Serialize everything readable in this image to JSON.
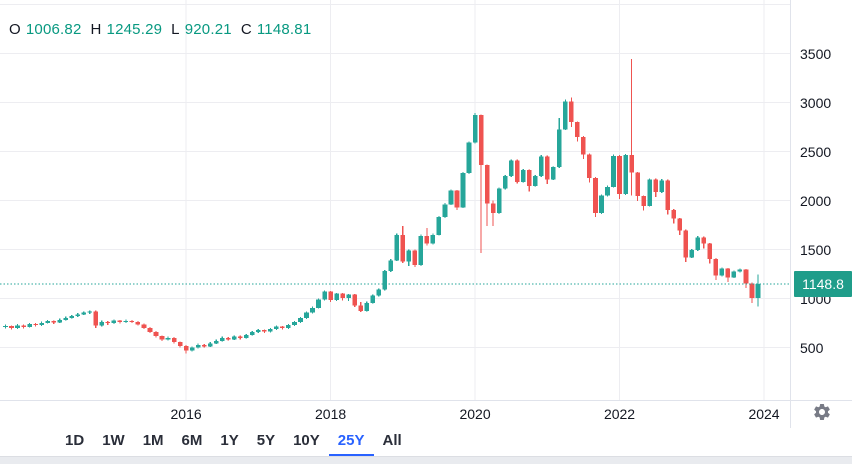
{
  "legend": {
    "o_label": "O",
    "o_value": "1006.82",
    "h_label": "H",
    "h_value": "1245.29",
    "l_label": "L",
    "l_value": "920.21",
    "c_label": "C",
    "c_value": "1148.81"
  },
  "price_axis": {
    "ticks": [
      3500,
      3000,
      2500,
      2000,
      1500,
      1000,
      500
    ],
    "current_price_label": "1148.8"
  },
  "time_axis": {
    "ticks": [
      "2016",
      "2018",
      "2020",
      "2022",
      "2024"
    ]
  },
  "toolbar": {
    "ranges": [
      {
        "label": "1D",
        "active": false
      },
      {
        "label": "1W",
        "active": false
      },
      {
        "label": "1M",
        "active": false
      },
      {
        "label": "6M",
        "active": false
      },
      {
        "label": "1Y",
        "active": false
      },
      {
        "label": "5Y",
        "active": false
      },
      {
        "label": "10Y",
        "active": false
      },
      {
        "label": "25Y",
        "active": true
      },
      {
        "label": "All",
        "active": false
      }
    ]
  },
  "icons": {
    "settings": "gear-icon"
  },
  "colors": {
    "up": "#26a69a",
    "down": "#ef5350",
    "legend_value": "#089981",
    "badge": "#1f9d8a",
    "dotted_price_line": "#26a69a",
    "accent_blue": "#2962ff",
    "grid": "#ededf1",
    "separator": "#e0e3eb",
    "text": "#131722",
    "icon_gray": "#787b86"
  },
  "chart_data": {
    "type": "candlestick",
    "interval": "1M",
    "timeframe_selected": "25Y",
    "start_month": "2013-07",
    "end_month": "2023-12",
    "last_price": 1148.81,
    "ohlc_last": {
      "open": 1006.82,
      "high": 1245.29,
      "low": 920.21,
      "close": 1148.81
    },
    "y_axis": {
      "ticks": [
        3500,
        3000,
        2500,
        2000,
        1500,
        1000,
        500
      ],
      "gridlines": [
        4000,
        3500,
        3000,
        2500,
        2000,
        1500,
        1000,
        500
      ],
      "visible_range": [
        420,
        4000
      ]
    },
    "x_axis": {
      "tick_years": [
        2016,
        2018,
        2020,
        2022,
        2024
      ]
    },
    "candles_format": [
      "open",
      "high",
      "low",
      "close"
    ],
    "candles": [
      [
        710,
        736,
        696,
        718
      ],
      [
        718,
        726,
        684,
        698
      ],
      [
        698,
        740,
        690,
        725
      ],
      [
        725,
        733,
        696,
        710
      ],
      [
        710,
        752,
        702,
        740
      ],
      [
        740,
        748,
        712,
        728
      ],
      [
        728,
        764,
        720,
        752
      ],
      [
        752,
        780,
        744,
        768
      ],
      [
        768,
        776,
        740,
        755
      ],
      [
        755,
        794,
        748,
        782
      ],
      [
        782,
        814,
        774,
        802
      ],
      [
        802,
        832,
        794,
        820
      ],
      [
        820,
        850,
        812,
        838
      ],
      [
        838,
        868,
        830,
        855
      ],
      [
        855,
        880,
        840,
        868
      ],
      [
        868,
        876,
        700,
        725
      ],
      [
        725,
        774,
        716,
        762
      ],
      [
        762,
        770,
        732,
        748
      ],
      [
        748,
        787,
        740,
        775
      ],
      [
        775,
        783,
        746,
        758
      ],
      [
        758,
        784,
        750,
        772
      ],
      [
        772,
        780,
        748,
        760
      ],
      [
        760,
        768,
        722,
        735
      ],
      [
        735,
        743,
        688,
        700
      ],
      [
        700,
        708,
        646,
        660
      ],
      [
        660,
        668,
        600,
        615
      ],
      [
        615,
        623,
        566,
        580
      ],
      [
        580,
        610,
        572,
        598
      ],
      [
        598,
        606,
        542,
        555
      ],
      [
        555,
        563,
        502,
        515
      ],
      [
        515,
        523,
        440,
        468
      ],
      [
        468,
        510,
        460,
        498
      ],
      [
        498,
        540,
        490,
        528
      ],
      [
        528,
        536,
        500,
        512
      ],
      [
        512,
        554,
        504,
        542
      ],
      [
        542,
        580,
        534,
        568
      ],
      [
        568,
        610,
        560,
        598
      ],
      [
        598,
        606,
        570,
        582
      ],
      [
        582,
        624,
        574,
        612
      ],
      [
        612,
        620,
        584,
        598
      ],
      [
        598,
        640,
        590,
        628
      ],
      [
        628,
        670,
        620,
        658
      ],
      [
        658,
        690,
        650,
        678
      ],
      [
        678,
        686,
        648,
        662
      ],
      [
        662,
        700,
        654,
        688
      ],
      [
        688,
        724,
        680,
        712
      ],
      [
        712,
        720,
        684,
        698
      ],
      [
        698,
        740,
        690,
        728
      ],
      [
        728,
        772,
        720,
        760
      ],
      [
        760,
        812,
        752,
        800
      ],
      [
        800,
        867,
        792,
        855
      ],
      [
        855,
        917,
        847,
        905
      ],
      [
        905,
        1002,
        897,
        990
      ],
      [
        990,
        1082,
        982,
        1070
      ],
      [
        1070,
        1078,
        962,
        985
      ],
      [
        985,
        1058,
        977,
        1050
      ],
      [
        1050,
        1058,
        980,
        1005
      ],
      [
        1005,
        1048,
        972,
        1040
      ],
      [
        1040,
        1048,
        912,
        930
      ],
      [
        930,
        962,
        860,
        875
      ],
      [
        875,
        968,
        867,
        955
      ],
      [
        955,
        1040,
        947,
        1030
      ],
      [
        1030,
        1100,
        1022,
        1090
      ],
      [
        1090,
        1292,
        1082,
        1280
      ],
      [
        1280,
        1402,
        1272,
        1390
      ],
      [
        1390,
        1662,
        1382,
        1650
      ],
      [
        1650,
        1740,
        1360,
        1380
      ],
      [
        1380,
        1502,
        1330,
        1490
      ],
      [
        1490,
        1498,
        1320,
        1340
      ],
      [
        1340,
        1652,
        1332,
        1640
      ],
      [
        1640,
        1720,
        1540,
        1560
      ],
      [
        1560,
        1662,
        1552,
        1650
      ],
      [
        1650,
        1842,
        1642,
        1830
      ],
      [
        1830,
        1972,
        1822,
        1960
      ],
      [
        1960,
        2112,
        1952,
        2100
      ],
      [
        2100,
        2108,
        1905,
        1930
      ],
      [
        1930,
        2292,
        1922,
        2280
      ],
      [
        2280,
        2600,
        2272,
        2590
      ],
      [
        2590,
        2892,
        2582,
        2870
      ],
      [
        2870,
        2878,
        1462,
        2360
      ],
      [
        2360,
        2368,
        1740,
        1970
      ],
      [
        1970,
        1998,
        1742,
        1870
      ],
      [
        1870,
        2132,
        1862,
        2120
      ],
      [
        2120,
        2262,
        2112,
        2250
      ],
      [
        2250,
        2420,
        2242,
        2410
      ],
      [
        2410,
        2418,
        2175,
        2190
      ],
      [
        2190,
        2322,
        2182,
        2310
      ],
      [
        2310,
        2318,
        2092,
        2150
      ],
      [
        2150,
        2262,
        2142,
        2250
      ],
      [
        2250,
        2462,
        2242,
        2450
      ],
      [
        2450,
        2458,
        2166,
        2215
      ],
      [
        2215,
        2347,
        2207,
        2340
      ],
      [
        2340,
        2840,
        2332,
        2725
      ],
      [
        2725,
        3030,
        2717,
        3010
      ],
      [
        3010,
        3052,
        2752,
        2800
      ],
      [
        2800,
        2808,
        2602,
        2650
      ],
      [
        2650,
        2658,
        2422,
        2470
      ],
      [
        2470,
        2478,
        2182,
        2230
      ],
      [
        2230,
        2238,
        1830,
        1870
      ],
      [
        1870,
        2062,
        1862,
        2050
      ],
      [
        2050,
        2152,
        2042,
        2140
      ],
      [
        2140,
        2467,
        2132,
        2455
      ],
      [
        2455,
        2463,
        2017,
        2065
      ],
      [
        2065,
        2477,
        2057,
        2465
      ],
      [
        2465,
        3442,
        2050,
        2285
      ],
      [
        2285,
        2293,
        1997,
        2045
      ],
      [
        2045,
        2053,
        1897,
        1945
      ],
      [
        1945,
        2227,
        1937,
        2215
      ],
      [
        2215,
        2223,
        2037,
        2085
      ],
      [
        2085,
        2217,
        2077,
        2205
      ],
      [
        2205,
        2213,
        1857,
        1905
      ],
      [
        1905,
        1913,
        1767,
        1815
      ],
      [
        1815,
        1823,
        1647,
        1695
      ],
      [
        1695,
        1703,
        1372,
        1420
      ],
      [
        1420,
        1507,
        1412,
        1495
      ],
      [
        1495,
        1637,
        1487,
        1625
      ],
      [
        1625,
        1633,
        1512,
        1560
      ],
      [
        1560,
        1568,
        1357,
        1405
      ],
      [
        1405,
        1413,
        1187,
        1235
      ],
      [
        1235,
        1317,
        1227,
        1305
      ],
      [
        1305,
        1313,
        1167,
        1215
      ],
      [
        1215,
        1287,
        1207,
        1275
      ],
      [
        1275,
        1307,
        1267,
        1295
      ],
      [
        1295,
        1303,
        1107,
        1155
      ],
      [
        1155,
        1163,
        952,
        1006.82
      ],
      [
        1006.82,
        1245.29,
        920.21,
        1148.81
      ]
    ]
  }
}
